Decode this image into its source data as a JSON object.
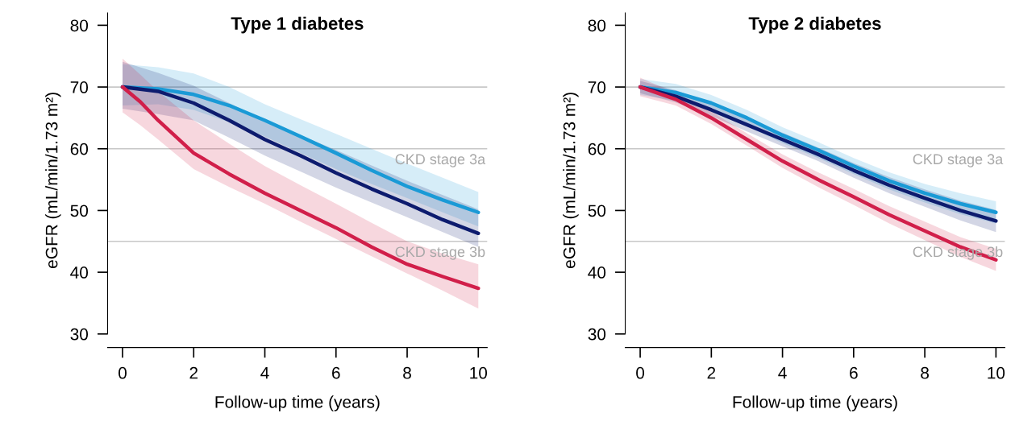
{
  "chart_data": [
    {
      "type": "line",
      "title": "Type 1 diabetes",
      "xlabel": "Follow-up time (years)",
      "ylabel": "eGFR (mL/min/1.73 m²)",
      "xlim": [
        -0.42,
        10.25
      ],
      "ylim": [
        27.8,
        82
      ],
      "xticks": [
        0,
        2,
        4,
        6,
        8,
        10
      ],
      "yticks": [
        30,
        40,
        50,
        60,
        70,
        80
      ],
      "x": [
        0,
        1,
        2,
        3,
        4,
        5,
        6,
        7,
        8,
        9,
        10
      ],
      "series": [
        {
          "color": "#1a9ad6",
          "values": [
            70,
            69.7,
            68.8,
            67,
            64.6,
            62,
            59.3,
            56.5,
            53.9,
            51.7,
            49.7
          ],
          "lower": [
            67,
            67.2,
            66.3,
            64.3,
            62,
            59.3,
            56.7,
            54.3,
            52,
            49.7,
            47.4
          ],
          "upper": [
            73.7,
            73.2,
            72.2,
            70,
            67.2,
            64.8,
            62.4,
            60,
            57.6,
            55.3,
            53
          ]
        },
        {
          "color": "#0d1b6e",
          "values": [
            70,
            69.3,
            67.4,
            64.6,
            61.5,
            58.9,
            56.1,
            53.5,
            51.1,
            48.5,
            46.3
          ],
          "lower": [
            66.5,
            65.6,
            64.6,
            61.8,
            58.9,
            56.3,
            53.7,
            51.3,
            48.9,
            46.5,
            44.1
          ],
          "upper": [
            74.1,
            72.3,
            70.2,
            67.4,
            64.6,
            62.2,
            59.8,
            57.3,
            54.8,
            52.5,
            50.2
          ]
        },
        {
          "color": "#d11f4a",
          "x": [
            0,
            0.5,
            1,
            2,
            3,
            4,
            5,
            6,
            7,
            8,
            9,
            10
          ],
          "values": [
            70,
            67.6,
            64.6,
            59.3,
            55.9,
            52.8,
            50,
            47.2,
            44.1,
            41.3,
            39.3,
            37.4
          ],
          "lower": [
            65.9,
            63.8,
            61.5,
            56.7,
            53.8,
            51.1,
            48.2,
            45.4,
            42.6,
            39.8,
            37,
            34.1
          ],
          "upper": [
            74.6,
            72,
            69.3,
            64.6,
            60.8,
            57.2,
            54.1,
            51.1,
            48,
            45,
            43,
            41.3
          ]
        }
      ],
      "ref_lines": [
        {
          "axis": "y",
          "value": 70,
          "color": "#c8c8c8"
        },
        {
          "axis": "y",
          "value": 60,
          "label": "CKD stage 3a",
          "color": "#c8c8c8"
        },
        {
          "axis": "y",
          "value": 45,
          "label": "CKD stage 3b",
          "color": "#c8c8c8"
        }
      ]
    },
    {
      "type": "line",
      "title": "Type 2 diabetes",
      "xlabel": "Follow-up time (years)",
      "ylabel": "eGFR (mL/min/1.73 m²)",
      "xlim": [
        -0.42,
        10.25
      ],
      "ylim": [
        27.8,
        82
      ],
      "xticks": [
        0,
        2,
        4,
        6,
        8,
        10
      ],
      "yticks": [
        30,
        40,
        50,
        60,
        70,
        80
      ],
      "x": [
        0,
        1,
        2,
        3,
        4,
        5,
        6,
        7,
        8,
        9,
        10
      ],
      "series": [
        {
          "color": "#1a9ad6",
          "values": [
            70,
            69.1,
            67.4,
            65,
            62.2,
            59.8,
            57.2,
            54.8,
            52.8,
            51.1,
            49.7
          ],
          "lower": [
            68.7,
            67.8,
            66.1,
            63.7,
            60.9,
            58.5,
            55.9,
            53.4,
            51.3,
            49.4,
            47.9
          ],
          "upper": [
            71.3,
            70.5,
            68.7,
            66.3,
            63.5,
            61.1,
            58.5,
            56.2,
            54.3,
            52.8,
            51.5
          ]
        },
        {
          "color": "#0d1b6e",
          "values": [
            70,
            68.5,
            66.3,
            63.9,
            61.5,
            59.1,
            56.5,
            54.1,
            52,
            50,
            48.3
          ],
          "lower": [
            69,
            67.5,
            65.3,
            62.8,
            60.4,
            58,
            55.3,
            52.8,
            50.6,
            48.4,
            46.5
          ],
          "upper": [
            71,
            69.5,
            67.3,
            65,
            62.6,
            60.2,
            57.7,
            55.4,
            53.4,
            51.6,
            50.1
          ]
        },
        {
          "color": "#d11f4a",
          "values": [
            70,
            68,
            65,
            61.5,
            58,
            55,
            52.2,
            49.3,
            46.7,
            44.1,
            42
          ],
          "lower": [
            68.5,
            67,
            64,
            60.5,
            56.9,
            53.8,
            50.9,
            47.9,
            45.2,
            42.5,
            40.2
          ],
          "upper": [
            71.5,
            69,
            66,
            62.5,
            59.1,
            56.2,
            53.5,
            50.7,
            48.2,
            45.7,
            43.8
          ]
        }
      ],
      "ref_lines": [
        {
          "axis": "y",
          "value": 70,
          "color": "#c8c8c8"
        },
        {
          "axis": "y",
          "value": 60,
          "label": "CKD stage 3a",
          "color": "#c8c8c8"
        },
        {
          "axis": "y",
          "value": 45,
          "label": "CKD stage 3b",
          "color": "#c8c8c8"
        }
      ]
    }
  ]
}
